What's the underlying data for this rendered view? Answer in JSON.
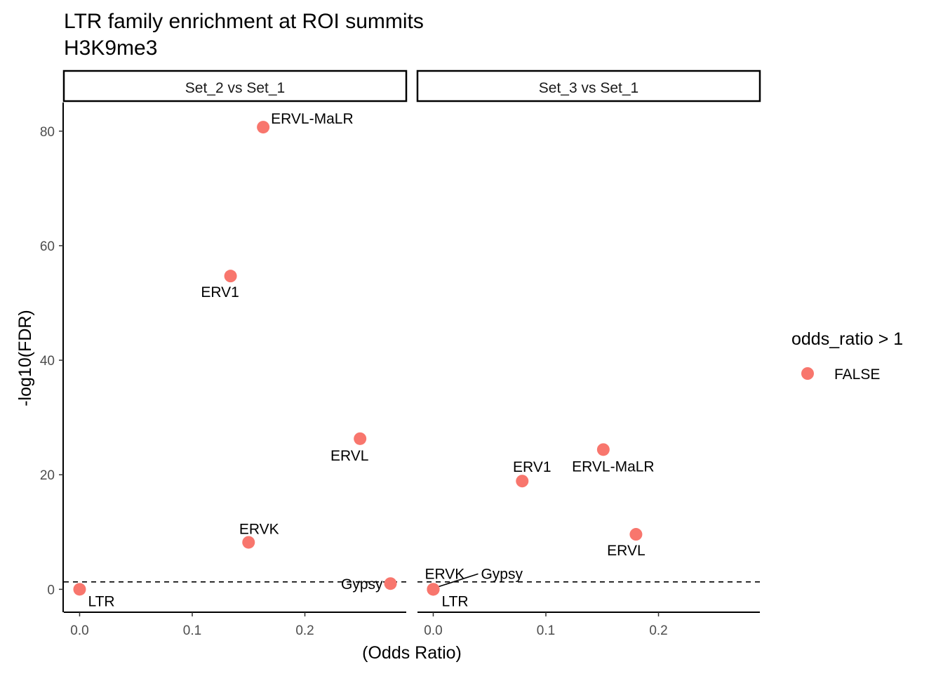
{
  "chart_data": {
    "type": "scatter",
    "title": "LTR family enrichment at ROI summits",
    "subtitle": "H3K9me3",
    "xlabel": "(Odds Ratio)",
    "ylabel": "-log10(FDR)",
    "xlim": [
      -0.014,
      0.29
    ],
    "ylim": [
      -4,
      85
    ],
    "x_ticks": [
      "0.0",
      "0.1",
      "0.2"
    ],
    "x_tick_values": [
      0,
      0.1,
      0.2
    ],
    "y_ticks": [
      "0",
      "20",
      "40",
      "60",
      "80"
    ],
    "y_tick_values": [
      0,
      20,
      40,
      60,
      80
    ],
    "threshold_line": {
      "y": 1.3,
      "style": "dashed"
    },
    "grid": false,
    "point_color": "#F8766D",
    "legend": {
      "title": "odds_ratio > 1",
      "placement": "right",
      "entries": [
        {
          "label": "FALSE",
          "color": "#F8766D"
        }
      ]
    },
    "panels": [
      {
        "strip": "Set_2 vs Set_1",
        "points": [
          {
            "label": "ERVL-MaLR",
            "x": 0.163,
            "y": 80.7
          },
          {
            "label": "ERV1",
            "x": 0.134,
            "y": 54.7
          },
          {
            "label": "ERVL",
            "x": 0.249,
            "y": 26.3
          },
          {
            "label": "ERVK",
            "x": 0.15,
            "y": 8.2
          },
          {
            "label": "Gypsy",
            "x": 0.276,
            "y": 1.0
          },
          {
            "label": "LTR",
            "x": 0.0,
            "y": 0.0
          }
        ]
      },
      {
        "strip": "Set_3 vs Set_1",
        "points": [
          {
            "label": "ERVL-MaLR",
            "x": 0.151,
            "y": 24.4
          },
          {
            "label": "ERV1",
            "x": 0.079,
            "y": 18.9
          },
          {
            "label": "ERVL",
            "x": 0.18,
            "y": 9.6
          },
          {
            "label": "ERVK",
            "x": 0.0,
            "y": 0.0
          },
          {
            "label": "Gypsy",
            "x": 0.0,
            "y": 0.0
          },
          {
            "label": "LTR",
            "x": 0.0,
            "y": 0.0
          }
        ]
      }
    ]
  }
}
